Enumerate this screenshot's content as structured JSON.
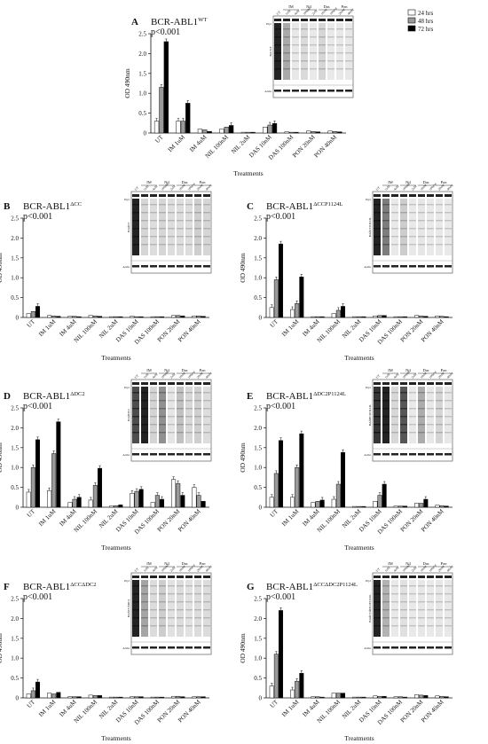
{
  "legend": {
    "entries": [
      {
        "label": "24 hrs",
        "color": "#ffffff"
      },
      {
        "label": "48 hrs",
        "color": "#9a9a9a"
      },
      {
        "label": "72 hrs",
        "color": "#000000"
      }
    ],
    "placement": "top-right"
  },
  "blot_labels": {
    "groups": [
      "IM",
      "Nil",
      "Das",
      "Pon"
    ],
    "lanes": [
      "UT",
      "1uM",
      "4uM",
      "100nM",
      "2uM",
      "10nM",
      "100nM",
      "20nM",
      "40nM"
    ],
    "pty": "Ptyr",
    "actin": "Actin"
  },
  "chart_data": [
    {
      "type": "bar",
      "panel": "A",
      "title": "BCR-ABL1",
      "title_sup": "WT",
      "pvalue": "p<0.001",
      "ylabel": "OD 490nm",
      "xlabel": "Treatments",
      "ylim": [
        0,
        2.5
      ],
      "yticks": [
        "0",
        "0.5",
        "1.0",
        "1.5",
        "2.0",
        "2.5"
      ],
      "categories": [
        "UT",
        "IM 1uM",
        "IM 4uM",
        "NIL 100nM",
        "NIL 2uM",
        "DAS 10nM",
        "DAS 100nM",
        "PON 20nM",
        "PON 40nM"
      ],
      "series": [
        {
          "name": "24 hrs",
          "values": [
            0.3,
            0.3,
            0.1,
            0.1,
            0.02,
            0.15,
            0.03,
            0.05,
            0.05
          ]
        },
        {
          "name": "48 hrs",
          "values": [
            1.15,
            0.3,
            0.08,
            0.15,
            0.02,
            0.2,
            0.02,
            0.04,
            0.04
          ]
        },
        {
          "name": "72 hrs",
          "values": [
            2.3,
            0.75,
            0.04,
            0.19,
            0.02,
            0.24,
            0.02,
            0.03,
            0.03
          ]
        }
      ],
      "blot_title": "BA WT"
    },
    {
      "type": "bar",
      "panel": "B",
      "title": "BCR-ABL1",
      "title_sup": "ΔCC",
      "pvalue": "p<0.001",
      "ylabel": "OD 490nm",
      "xlabel": "Treatments",
      "ylim": [
        0,
        2.5
      ],
      "yticks": [
        "0",
        "0.5",
        "1.0",
        "1.5",
        "2.0",
        "2.5"
      ],
      "categories": [
        "UT",
        "IM 1uM",
        "IM 4uM",
        "NIL 100nM",
        "NIL 2uM",
        "DAS 10nM",
        "DAS 100nM",
        "PON 20nM",
        "PON 40nM"
      ],
      "series": [
        {
          "name": "24 hrs",
          "values": [
            0.1,
            0.05,
            0.03,
            0.05,
            0.02,
            0.03,
            0.02,
            0.05,
            0.04
          ]
        },
        {
          "name": "48 hrs",
          "values": [
            0.15,
            0.04,
            0.03,
            0.04,
            0.02,
            0.02,
            0.02,
            0.05,
            0.04
          ]
        },
        {
          "name": "72 hrs",
          "values": [
            0.28,
            0.03,
            0.02,
            0.03,
            0.02,
            0.02,
            0.02,
            0.04,
            0.03
          ]
        }
      ],
      "blot_title": "BA∆CC"
    },
    {
      "type": "bar",
      "panel": "C",
      "title": "BCR-ABL1",
      "title_sup": "ΔCCP1124L",
      "pvalue": "p<0.001",
      "ylabel": "OD 490nm",
      "xlabel": "Treatments",
      "ylim": [
        0,
        2.5
      ],
      "yticks": [
        "0",
        "0.5",
        "1.0",
        "1.5",
        "2.0",
        "2.5"
      ],
      "categories": [
        "UT",
        "IM 1uM",
        "IM 4uM",
        "NIL 100nM",
        "NIL 2uM",
        "DAS 10nM",
        "DAS 100nM",
        "PON 20nM",
        "PON 40nM"
      ],
      "series": [
        {
          "name": "24 hrs",
          "values": [
            0.25,
            0.2,
            0.02,
            0.1,
            0.02,
            0.04,
            0.02,
            0.05,
            0.04
          ]
        },
        {
          "name": "48 hrs",
          "values": [
            0.95,
            0.35,
            0.02,
            0.18,
            0.02,
            0.05,
            0.02,
            0.04,
            0.03
          ]
        },
        {
          "name": "72 hrs",
          "values": [
            1.85,
            1.02,
            0.02,
            0.28,
            0.02,
            0.05,
            0.02,
            0.03,
            0.02
          ]
        }
      ],
      "blot_title": "BA∆CCP1124L"
    },
    {
      "type": "bar",
      "panel": "D",
      "title": "BCR-ABL1",
      "title_sup": "ΔDC2",
      "pvalue": "p<0.001",
      "ylabel": "OD 490nm",
      "xlabel": "Treatments",
      "ylim": [
        0,
        2.5
      ],
      "yticks": [
        "0",
        "0.5",
        "1.0",
        "1.5",
        "2.0",
        "2.5"
      ],
      "categories": [
        "UT",
        "IM 1uM",
        "IM 4uM",
        "NIL 100nM",
        "NIL 2uM",
        "DAS 10nM",
        "DAS 100nM",
        "PON 20nM",
        "PON 40nM"
      ],
      "series": [
        {
          "name": "24 hrs",
          "values": [
            0.38,
            0.42,
            0.12,
            0.18,
            0.03,
            0.35,
            0.12,
            0.7,
            0.5
          ]
        },
        {
          "name": "48 hrs",
          "values": [
            1.0,
            1.35,
            0.2,
            0.55,
            0.04,
            0.4,
            0.3,
            0.6,
            0.3
          ]
        },
        {
          "name": "72 hrs",
          "values": [
            1.7,
            2.15,
            0.25,
            0.98,
            0.06,
            0.45,
            0.2,
            0.3,
            0.15
          ]
        }
      ],
      "blot_title": "BA∆DC2"
    },
    {
      "type": "bar",
      "panel": "E",
      "title": "BCR-ABL1",
      "title_sup": "ΔDC2P1124L",
      "pvalue": "p<0.001",
      "ylabel": "OD 490nm",
      "xlabel": "Treatments",
      "ylim": [
        0,
        2.5
      ],
      "yticks": [
        "0",
        "0.5",
        "1.0",
        "1.5",
        "2.0",
        "2.5"
      ],
      "categories": [
        "UT",
        "IM 1uM",
        "IM 4uM",
        "NIL 100nM",
        "NIL 2uM",
        "DAS 10nM",
        "DAS 100nM",
        "PON 20nM",
        "PON 40nM"
      ],
      "series": [
        {
          "name": "24 hrs",
          "values": [
            0.25,
            0.25,
            0.12,
            0.2,
            0.02,
            0.15,
            0.03,
            0.1,
            0.05
          ]
        },
        {
          "name": "48 hrs",
          "values": [
            0.85,
            1.0,
            0.15,
            0.58,
            0.02,
            0.3,
            0.03,
            0.1,
            0.04
          ]
        },
        {
          "name": "72 hrs",
          "values": [
            1.68,
            1.85,
            0.18,
            1.38,
            0.02,
            0.58,
            0.03,
            0.2,
            0.03
          ]
        }
      ],
      "blot_title": "BA∆DC2P1124L"
    },
    {
      "type": "bar",
      "panel": "F",
      "title": "BCR-ABL1",
      "title_sup": "ΔCCΔDC2",
      "pvalue": "p<0.001",
      "ylabel": "OD 490nm",
      "xlabel": "Treatments",
      "ylim": [
        0,
        2.5
      ],
      "yticks": [
        "0",
        "0.5",
        "1.0",
        "1.5",
        "2.0",
        "2.5"
      ],
      "categories": [
        "UT",
        "IM 1uM",
        "IM 4uM",
        "NIL 100nM",
        "NIL 2uM",
        "DAS 10nM",
        "DAS 100nM",
        "PON 20nM",
        "PON 40nM"
      ],
      "series": [
        {
          "name": "24 hrs",
          "values": [
            0.1,
            0.12,
            0.03,
            0.07,
            0.02,
            0.03,
            0.02,
            0.04,
            0.03
          ]
        },
        {
          "name": "48 hrs",
          "values": [
            0.18,
            0.1,
            0.03,
            0.06,
            0.02,
            0.03,
            0.02,
            0.04,
            0.03
          ]
        },
        {
          "name": "72 hrs",
          "values": [
            0.4,
            0.14,
            0.03,
            0.06,
            0.02,
            0.03,
            0.02,
            0.03,
            0.03
          ]
        }
      ],
      "blot_title": "BA∆CC∆DC2"
    },
    {
      "type": "bar",
      "panel": "G",
      "title": "BCR-ABL1",
      "title_sup": "ΔCCΔDC2P1124L",
      "pvalue": "p<0.001",
      "ylabel": "OD 490nm",
      "xlabel": "Treatments",
      "ylim": [
        0,
        2.5
      ],
      "yticks": [
        "0",
        "0.5",
        "1.0",
        "1.5",
        "2.0",
        "2.5"
      ],
      "categories": [
        "UT",
        "IM 1uM",
        "IM 4uM",
        "NIL 100nM",
        "NIL 2uM",
        "DAS 10nM",
        "DAS 100nM",
        "PON 20nM",
        "PON 40nM"
      ],
      "series": [
        {
          "name": "24 hrs",
          "values": [
            0.3,
            0.2,
            0.03,
            0.12,
            0.02,
            0.05,
            0.03,
            0.08,
            0.05
          ]
        },
        {
          "name": "48 hrs",
          "values": [
            1.1,
            0.42,
            0.03,
            0.12,
            0.02,
            0.04,
            0.03,
            0.07,
            0.04
          ]
        },
        {
          "name": "72 hrs",
          "values": [
            2.2,
            0.62,
            0.02,
            0.12,
            0.02,
            0.04,
            0.02,
            0.06,
            0.03
          ]
        }
      ],
      "blot_title": "BA∆CC∆DC2P1124L"
    }
  ]
}
